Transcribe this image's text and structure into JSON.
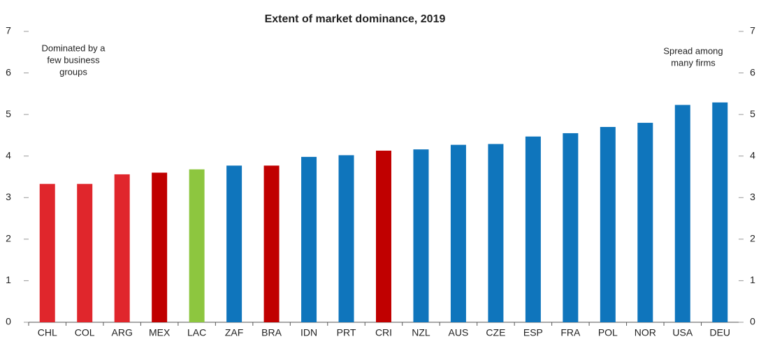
{
  "chart_data": {
    "type": "bar",
    "title": "Extent of market dominance, 2019",
    "categories": [
      "CHL",
      "COL",
      "ARG",
      "MEX",
      "LAC",
      "ZAF",
      "BRA",
      "IDN",
      "PRT",
      "CRI",
      "NZL",
      "AUS",
      "CZE",
      "ESP",
      "FRA",
      "POL",
      "NOR",
      "USA",
      "DEU"
    ],
    "values": [
      3.33,
      3.33,
      3.56,
      3.6,
      3.68,
      3.77,
      3.77,
      3.98,
      4.02,
      4.13,
      4.16,
      4.27,
      4.29,
      4.47,
      4.55,
      4.7,
      4.8,
      5.23,
      5.29
    ],
    "colors": [
      "#e0262c",
      "#e0262c",
      "#e0262c",
      "#c00000",
      "#8dc63f",
      "#0f75bc",
      "#c00000",
      "#0f75bc",
      "#0f75bc",
      "#c00000",
      "#0f75bc",
      "#0f75bc",
      "#0f75bc",
      "#0f75bc",
      "#0f75bc",
      "#0f75bc",
      "#0f75bc",
      "#0f75bc",
      "#0f75bc"
    ],
    "ylim": [
      0,
      7
    ],
    "yticks": [
      0,
      1,
      2,
      3,
      4,
      5,
      6,
      7
    ],
    "y2lim": [
      0,
      7
    ],
    "y2ticks": [
      0,
      1,
      2,
      3,
      4,
      5,
      6,
      7
    ],
    "annotations": [
      {
        "lines": [
          "Dominated by a",
          "few business",
          "groups"
        ]
      },
      {
        "lines": [
          "Spread among",
          "many firms"
        ]
      }
    ]
  }
}
